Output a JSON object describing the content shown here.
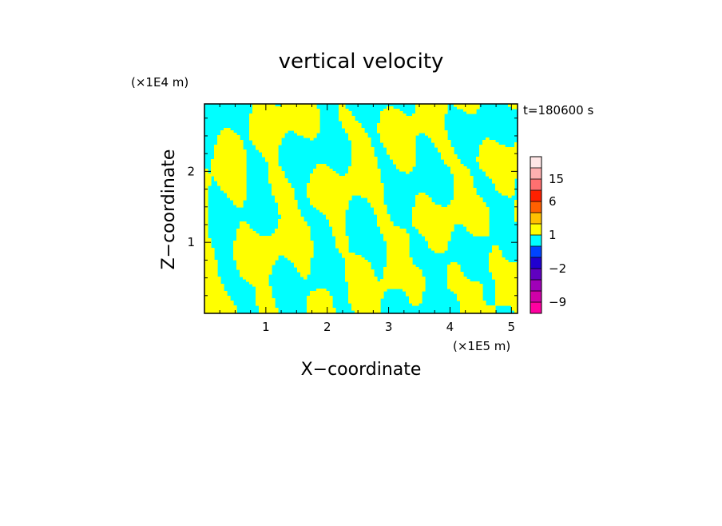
{
  "chart_data": {
    "type": "heatmap",
    "title": "vertical velocity",
    "xlabel": "X−coordinate",
    "ylabel": "Z−coordinate",
    "x_unit": "(×1E5 m)",
    "y_unit": "(×1E4 m)",
    "time_label": "t=180600 s",
    "xlim": [
      0,
      5.1
    ],
    "ylim": [
      0,
      2.95
    ],
    "x_ticks": [
      1,
      2,
      3,
      4,
      5
    ],
    "y_ticks": [
      1,
      2
    ],
    "field_levels": [
      -1,
      1
    ],
    "field_colors": [
      "#00ffff",
      "#ffff00"
    ],
    "colorbar": {
      "levels": [
        -12,
        -9,
        -6,
        -4,
        -2,
        -1,
        0,
        1,
        2,
        4,
        6,
        10,
        15,
        20,
        25
      ],
      "colors": [
        "#ff00a0",
        "#d000a8",
        "#a000b8",
        "#6000c0",
        "#2000d0",
        "#0044ff",
        "#00ffff",
        "#ffff00",
        "#ffc000",
        "#ff6000",
        "#ff2000",
        "#ff7070",
        "#ffb0b0",
        "#ffe6e6"
      ],
      "tick_labels": [
        {
          "value": 15,
          "label": "15"
        },
        {
          "value": 6,
          "label": "6"
        },
        {
          "value": 1,
          "label": "1"
        },
        {
          "value": -2,
          "label": "−2"
        },
        {
          "value": -9,
          "label": "−9"
        }
      ]
    }
  }
}
